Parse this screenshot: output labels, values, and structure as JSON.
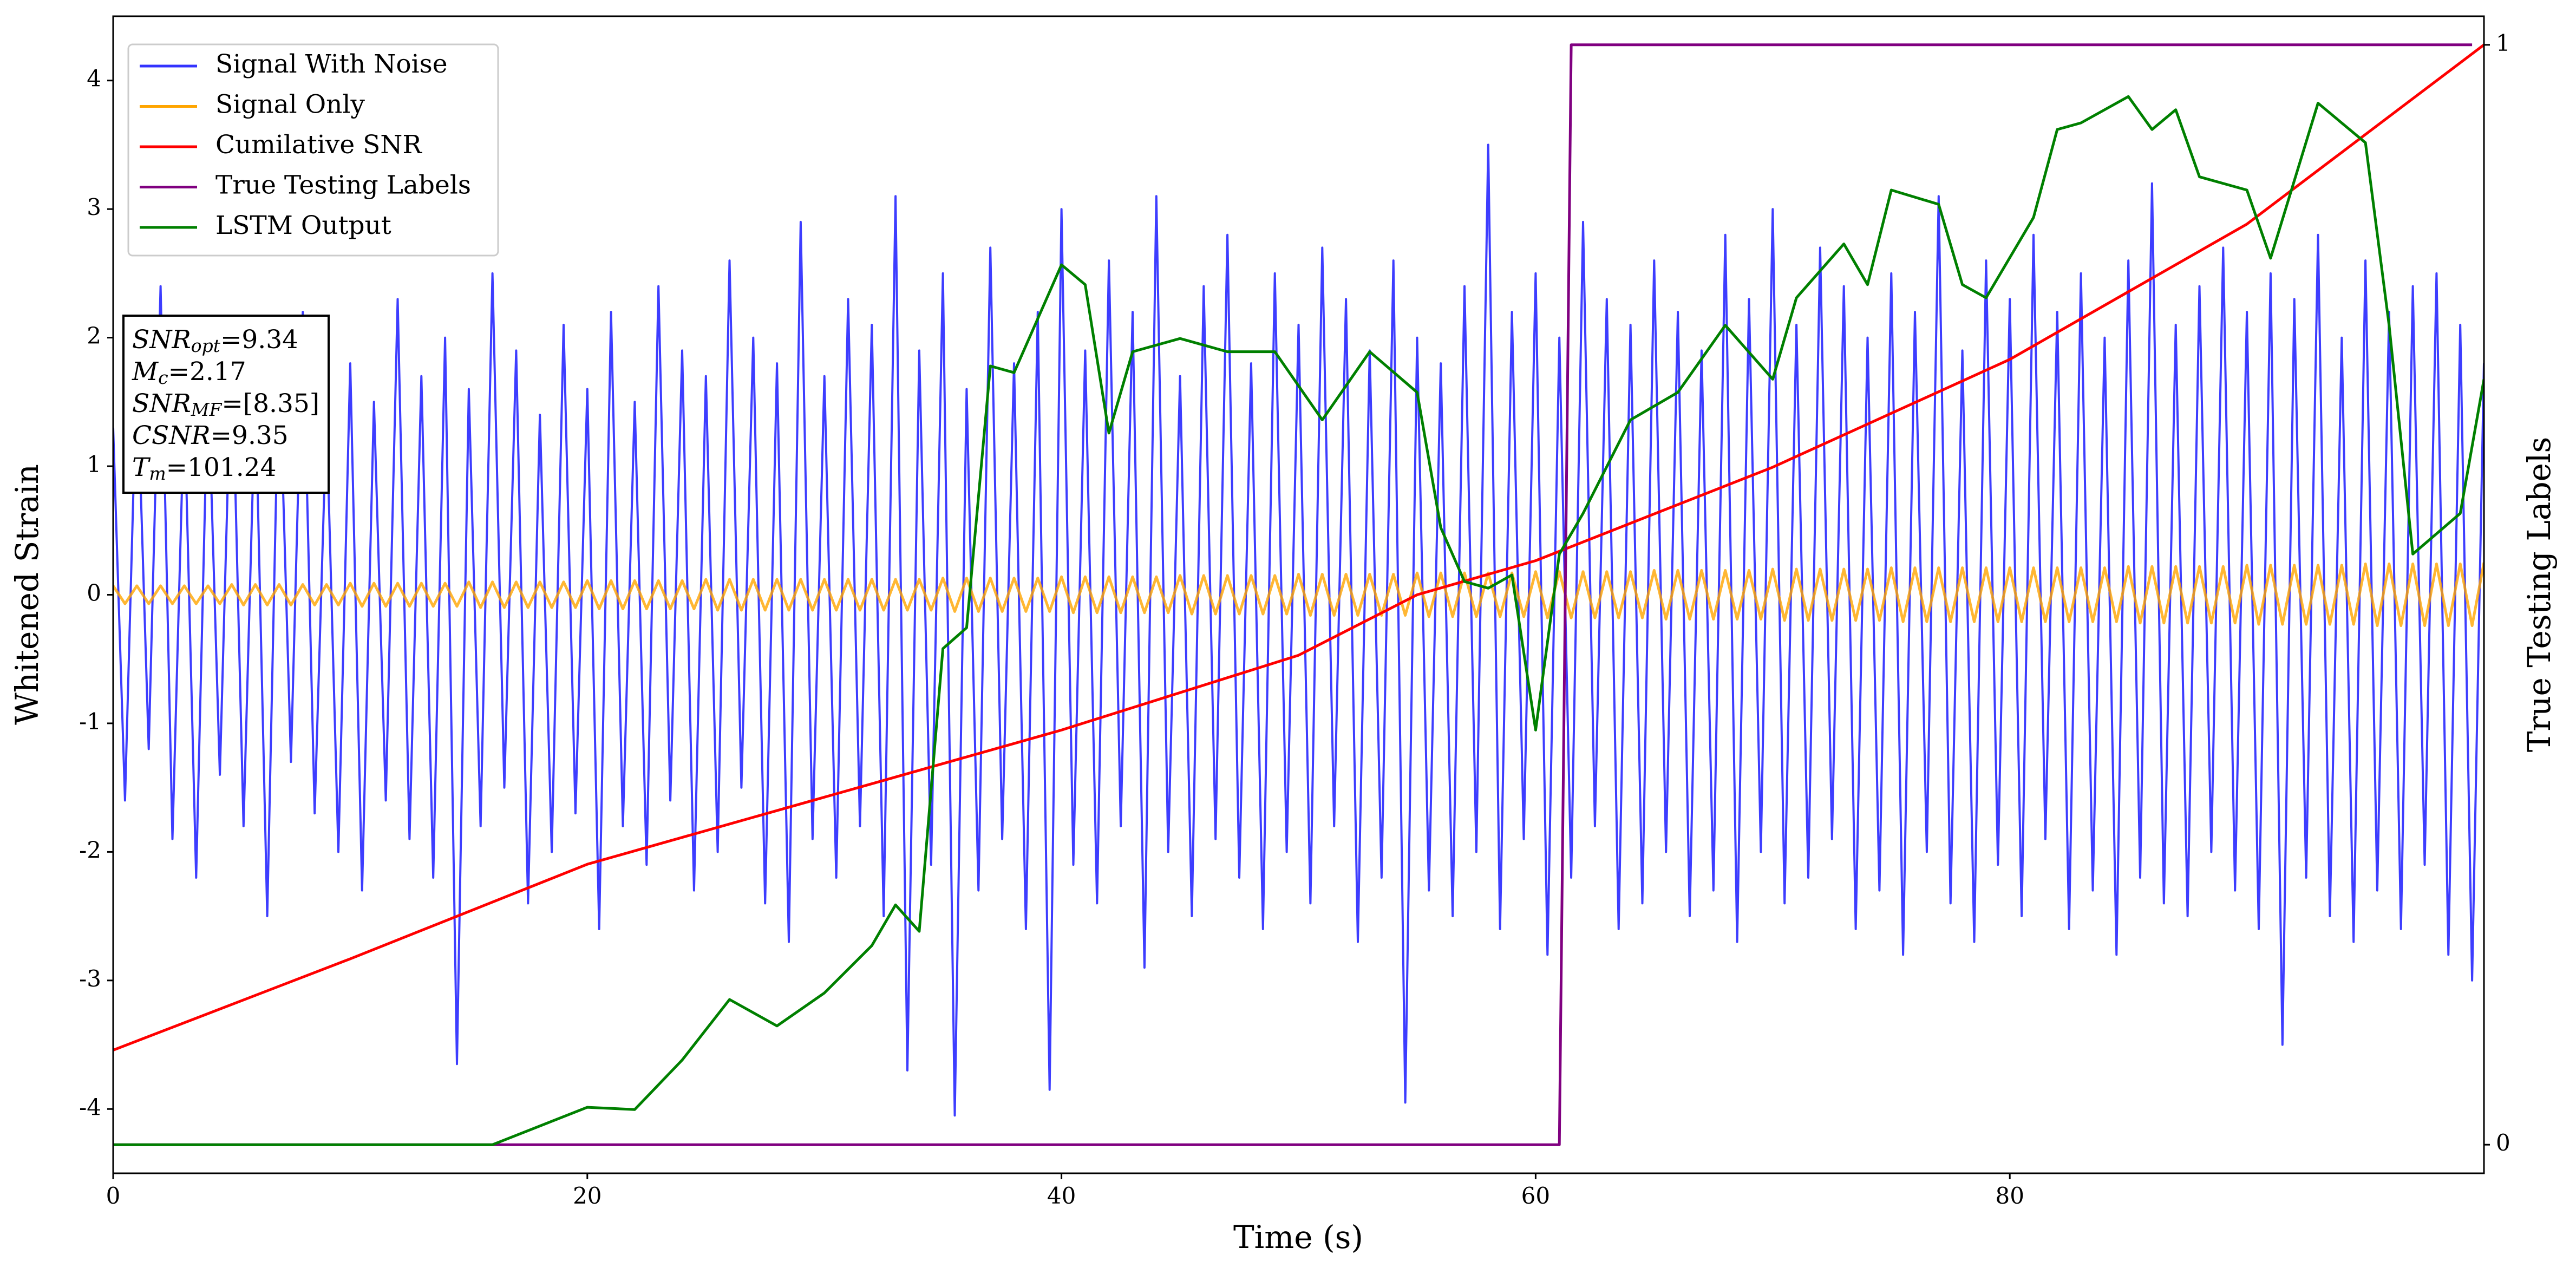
{
  "chart_data": {
    "type": "line",
    "x_label": "Time (s)",
    "y_label": "Whitened Strain",
    "y2_label": "True Testing Labels",
    "xlim": [
      0,
      100
    ],
    "xticks": [
      0,
      20,
      40,
      60,
      80
    ],
    "ylim": [
      -4.5,
      4.5
    ],
    "yticks": [
      -4,
      -3,
      -2,
      -1,
      0,
      1,
      2,
      3,
      4
    ],
    "y2lim": [
      -0.026,
      1.026
    ],
    "y2ticks": [
      0,
      1
    ],
    "legend": "upper left",
    "x": [
      0,
      0.5,
      1,
      1.5,
      2,
      2.5,
      3,
      3.5,
      4,
      4.5,
      5,
      5.5,
      6,
      6.5,
      7,
      7.5,
      8,
      8.5,
      9,
      9.5,
      10,
      10.5,
      11,
      11.5,
      12,
      12.5,
      13,
      13.5,
      14,
      14.5,
      15,
      15.5,
      16,
      16.5,
      17,
      17.5,
      18,
      18.5,
      19,
      19.5,
      20,
      20.5,
      21,
      21.5,
      22,
      22.5,
      23,
      23.5,
      24,
      24.5,
      25,
      25.5,
      26,
      26.5,
      27,
      27.5,
      28,
      28.5,
      29,
      29.5,
      30,
      30.5,
      31,
      31.5,
      32,
      32.5,
      33,
      33.5,
      34,
      34.5,
      35,
      35.5,
      36,
      36.5,
      37,
      37.5,
      38,
      38.5,
      39,
      39.5,
      40,
      40.5,
      41,
      41.5,
      42,
      42.5,
      43,
      43.5,
      44,
      44.5,
      45,
      45.5,
      46,
      46.5,
      47,
      47.5,
      48,
      48.5,
      49,
      49.5,
      50,
      50.5,
      51,
      51.5,
      52,
      52.5,
      53,
      53.5,
      54,
      54.5,
      55,
      55.5,
      56,
      56.5,
      57,
      57.5,
      58,
      58.5,
      59,
      59.5,
      60,
      60.5,
      61,
      61.5,
      62,
      62.5,
      63,
      63.5,
      64,
      64.5,
      65,
      65.5,
      66,
      66.5,
      67,
      67.5,
      68,
      68.5,
      69,
      69.5,
      70,
      70.5,
      71,
      71.5,
      72,
      72.5,
      73,
      73.5,
      74,
      74.5,
      75,
      75.5,
      76,
      76.5,
      77,
      77.5,
      78,
      78.5,
      79,
      79.5,
      80,
      80.5,
      81,
      81.5,
      82,
      82.5,
      83,
      83.5,
      84,
      84.5,
      85,
      85.5,
      86,
      86.5,
      87,
      87.5,
      88,
      88.5,
      89,
      89.5,
      90,
      90.5,
      91,
      91.5,
      92,
      92.5,
      93,
      93.5,
      94,
      94.5,
      95,
      95.5,
      96,
      96.5,
      97,
      97.5,
      98,
      98.5,
      99,
      99.5,
      100
    ],
    "series": [
      {
        "name": "Signal With Noise",
        "color": "#3333ff",
        "values": [
          1.3,
          -1.6,
          1.8,
          -1.2,
          2.4,
          -1.9,
          1.5,
          -2.2,
          1.7,
          -1.4,
          2.0,
          -1.8,
          1.6,
          -2.5,
          1.9,
          -1.3,
          2.2,
          -1.7,
          1.4,
          -2.0,
          1.8,
          -2.3,
          1.5,
          -1.6,
          2.3,
          -1.9,
          1.7,
          -2.2,
          2.0,
          -3.65,
          1.6,
          -1.8,
          2.5,
          -1.5,
          1.9,
          -2.4,
          1.4,
          -2.0,
          2.1,
          -1.7,
          1.6,
          -2.6,
          2.2,
          -1.8,
          1.5,
          -2.1,
          2.4,
          -1.6,
          1.9,
          -2.3,
          1.7,
          -2.0,
          2.6,
          -1.5,
          2.0,
          -2.4,
          1.8,
          -2.7,
          2.9,
          -1.9,
          1.7,
          -2.2,
          2.3,
          -1.8,
          2.1,
          -2.5,
          3.1,
          -3.7,
          1.9,
          -2.1,
          2.5,
          -4.05,
          1.6,
          -2.3,
          2.7,
          -1.9,
          1.8,
          -2.6,
          2.2,
          -3.85,
          3.0,
          -2.1,
          1.9,
          -2.4,
          2.6,
          -1.8,
          2.2,
          -2.9,
          3.1,
          -2.0,
          1.7,
          -2.5,
          2.4,
          -1.9,
          2.8,
          -2.2,
          1.8,
          -2.6,
          2.5,
          -2.0,
          2.1,
          -2.4,
          2.7,
          -1.8,
          2.3,
          -2.7,
          1.9,
          -2.2,
          2.6,
          -3.95,
          2.0,
          -2.3,
          1.8,
          -2.5,
          2.4,
          -2.0,
          3.5,
          -2.6,
          2.2,
          -1.9,
          2.5,
          -2.8,
          2.0,
          -2.2,
          2.9,
          -1.8,
          2.3,
          -2.6,
          2.1,
          -2.4,
          2.6,
          -2.0,
          2.2,
          -2.5,
          1.9,
          -2.3,
          2.8,
          -2.7,
          2.3,
          -2.0,
          3.0,
          -2.4,
          2.1,
          -2.2,
          2.7,
          -1.9,
          2.4,
          -2.6,
          2.0,
          -2.3,
          2.5,
          -2.8,
          2.2,
          -2.0,
          3.1,
          -2.4,
          1.9,
          -2.7,
          2.6,
          -2.1,
          2.3,
          -2.5,
          2.8,
          -1.9,
          2.2,
          -2.6,
          2.5,
          -2.3,
          2.0,
          -2.8,
          2.6,
          -2.2,
          3.2,
          -2.4,
          2.1,
          -2.5,
          2.4,
          -2.0,
          2.7,
          -2.3,
          2.2,
          -2.6,
          2.5,
          -3.5,
          2.3,
          -2.2,
          2.8,
          -2.5,
          2.0,
          -2.7,
          2.6,
          -2.3,
          2.2,
          -2.6,
          2.4,
          -2.1,
          2.5,
          -2.8,
          2.1,
          -3.0,
          1.8
        ]
      },
      {
        "name": "Signal Only",
        "color": "#ffa500",
        "values": [
          0.07,
          -0.07,
          0.07,
          -0.07,
          0.07,
          -0.07,
          0.07,
          -0.07,
          0.07,
          -0.07,
          0.08,
          -0.08,
          0.08,
          -0.08,
          0.08,
          -0.08,
          0.08,
          -0.08,
          0.08,
          -0.08,
          0.09,
          -0.09,
          0.09,
          -0.09,
          0.09,
          -0.09,
          0.09,
          -0.09,
          0.09,
          -0.09,
          0.1,
          -0.1,
          0.1,
          -0.1,
          0.1,
          -0.1,
          0.1,
          -0.1,
          0.1,
          -0.1,
          0.11,
          -0.11,
          0.11,
          -0.11,
          0.11,
          -0.11,
          0.11,
          -0.11,
          0.11,
          -0.11,
          0.12,
          -0.12,
          0.12,
          -0.12,
          0.12,
          -0.12,
          0.12,
          -0.12,
          0.12,
          -0.12,
          0.12,
          -0.12,
          0.12,
          -0.12,
          0.12,
          -0.12,
          0.12,
          -0.12,
          0.12,
          -0.12,
          0.13,
          -0.13,
          0.13,
          -0.13,
          0.13,
          -0.13,
          0.13,
          -0.13,
          0.13,
          -0.13,
          0.14,
          -0.14,
          0.14,
          -0.14,
          0.14,
          -0.14,
          0.14,
          -0.14,
          0.14,
          -0.14,
          0.15,
          -0.15,
          0.15,
          -0.15,
          0.15,
          -0.15,
          0.15,
          -0.15,
          0.15,
          -0.15,
          0.16,
          -0.16,
          0.16,
          -0.16,
          0.16,
          -0.16,
          0.16,
          -0.16,
          0.16,
          -0.16,
          0.17,
          -0.17,
          0.17,
          -0.17,
          0.17,
          -0.17,
          0.17,
          -0.17,
          0.17,
          -0.17,
          0.18,
          -0.18,
          0.18,
          -0.18,
          0.18,
          -0.18,
          0.18,
          -0.18,
          0.18,
          -0.18,
          0.19,
          -0.19,
          0.19,
          -0.19,
          0.19,
          -0.19,
          0.19,
          -0.19,
          0.19,
          -0.19,
          0.2,
          -0.2,
          0.2,
          -0.2,
          0.2,
          -0.2,
          0.2,
          -0.2,
          0.2,
          -0.2,
          0.21,
          -0.21,
          0.21,
          -0.21,
          0.21,
          -0.21,
          0.21,
          -0.21,
          0.21,
          -0.21,
          0.21,
          -0.21,
          0.21,
          -0.21,
          0.21,
          -0.21,
          0.21,
          -0.21,
          0.21,
          -0.21,
          0.22,
          -0.22,
          0.22,
          -0.22,
          0.22,
          -0.22,
          0.22,
          -0.22,
          0.22,
          -0.22,
          0.23,
          -0.23,
          0.23,
          -0.23,
          0.23,
          -0.23,
          0.23,
          -0.23,
          0.23,
          -0.23,
          0.24,
          -0.24,
          0.24,
          -0.24,
          0.24,
          -0.24,
          0.24,
          -0.24,
          0.24,
          -0.24,
          0.25
        ]
      },
      {
        "name": "Cumilative SNR",
        "color": "#ff0000",
        "axis": "y2",
        "x": [
          0,
          10,
          20,
          30,
          40,
          50,
          55,
          60,
          70,
          80,
          90,
          100
        ],
        "values": [
          0.086,
          0.169,
          0.255,
          0.316,
          0.377,
          0.445,
          0.5,
          0.531,
          0.616,
          0.714,
          0.837,
          1.0
        ]
      },
      {
        "name": "True Testing Labels",
        "color": "#800080",
        "axis": "y2",
        "x": [
          0,
          61,
          61.5,
          99.5
        ],
        "values": [
          0,
          0,
          1,
          1
        ]
      },
      {
        "name": "LSTM Output",
        "color": "#008000",
        "axis": "y2",
        "x": [
          0,
          16,
          20,
          22,
          24,
          26,
          28,
          30,
          32,
          33,
          34,
          35,
          36,
          37,
          38,
          40,
          41,
          42,
          43,
          45,
          47,
          49,
          51,
          53,
          55,
          56,
          57,
          58,
          59,
          60,
          61,
          62,
          64,
          66,
          68,
          70,
          71,
          73,
          74,
          75,
          77,
          78,
          79,
          81,
          82,
          83,
          85,
          86,
          87,
          88,
          90,
          91,
          93,
          95,
          96,
          97,
          99,
          100
        ],
        "values": [
          0,
          0,
          0.034,
          0.032,
          0.077,
          0.132,
          0.108,
          0.138,
          0.181,
          0.218,
          0.194,
          0.451,
          0.47,
          0.708,
          0.702,
          0.8,
          0.782,
          0.647,
          0.721,
          0.733,
          0.721,
          0.721,
          0.659,
          0.721,
          0.684,
          0.561,
          0.512,
          0.506,
          0.518,
          0.377,
          0.537,
          0.574,
          0.659,
          0.684,
          0.745,
          0.696,
          0.77,
          0.819,
          0.782,
          0.868,
          0.855,
          0.782,
          0.77,
          0.843,
          0.923,
          0.929,
          0.953,
          0.923,
          0.941,
          0.88,
          0.868,
          0.806,
          0.947,
          0.911,
          0.745,
          0.537,
          0.574,
          0.696
        ]
      }
    ],
    "annotation": [
      {
        "main": "SNR",
        "sub": "opt",
        "rest": "=9.34"
      },
      {
        "main": "M",
        "sub": "c",
        "rest": "=2.17"
      },
      {
        "main": "SNR",
        "sub": "MF",
        "rest": "=[8.35]"
      },
      {
        "main": "CSNR",
        "rest": "=9.35"
      },
      {
        "main": "T",
        "sub": "m",
        "rest": "=101.24"
      }
    ]
  }
}
